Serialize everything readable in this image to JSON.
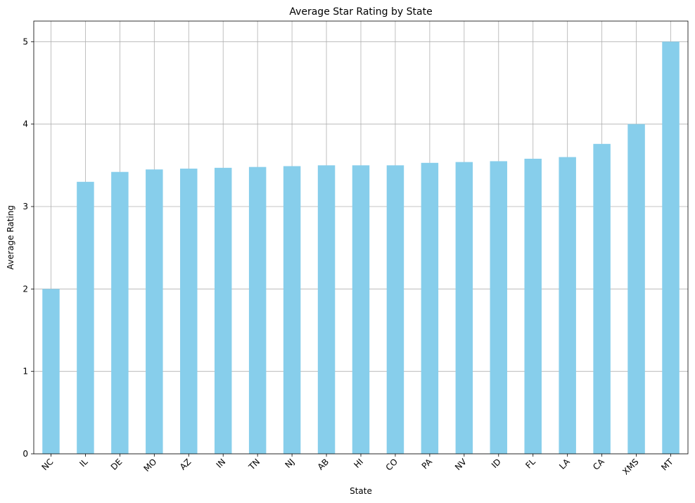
{
  "chart_data": {
    "type": "bar",
    "title": "Average Star Rating by State",
    "xlabel": "State",
    "ylabel": "Average Rating",
    "categories": [
      "NC",
      "IL",
      "DE",
      "MO",
      "AZ",
      "IN",
      "TN",
      "NJ",
      "AB",
      "HI",
      "CO",
      "PA",
      "NV",
      "ID",
      "FL",
      "LA",
      "CA",
      "XMS",
      "MT"
    ],
    "values": [
      2.0,
      3.3,
      3.42,
      3.45,
      3.46,
      3.47,
      3.48,
      3.49,
      3.5,
      3.5,
      3.5,
      3.53,
      3.54,
      3.55,
      3.58,
      3.6,
      3.76,
      4.0,
      5.0
    ],
    "ylim": [
      0,
      5.25
    ],
    "yticks": [
      0,
      1,
      2,
      3,
      4,
      5
    ],
    "grid": true,
    "legend": "none",
    "bar_color": "#87ceeb"
  }
}
